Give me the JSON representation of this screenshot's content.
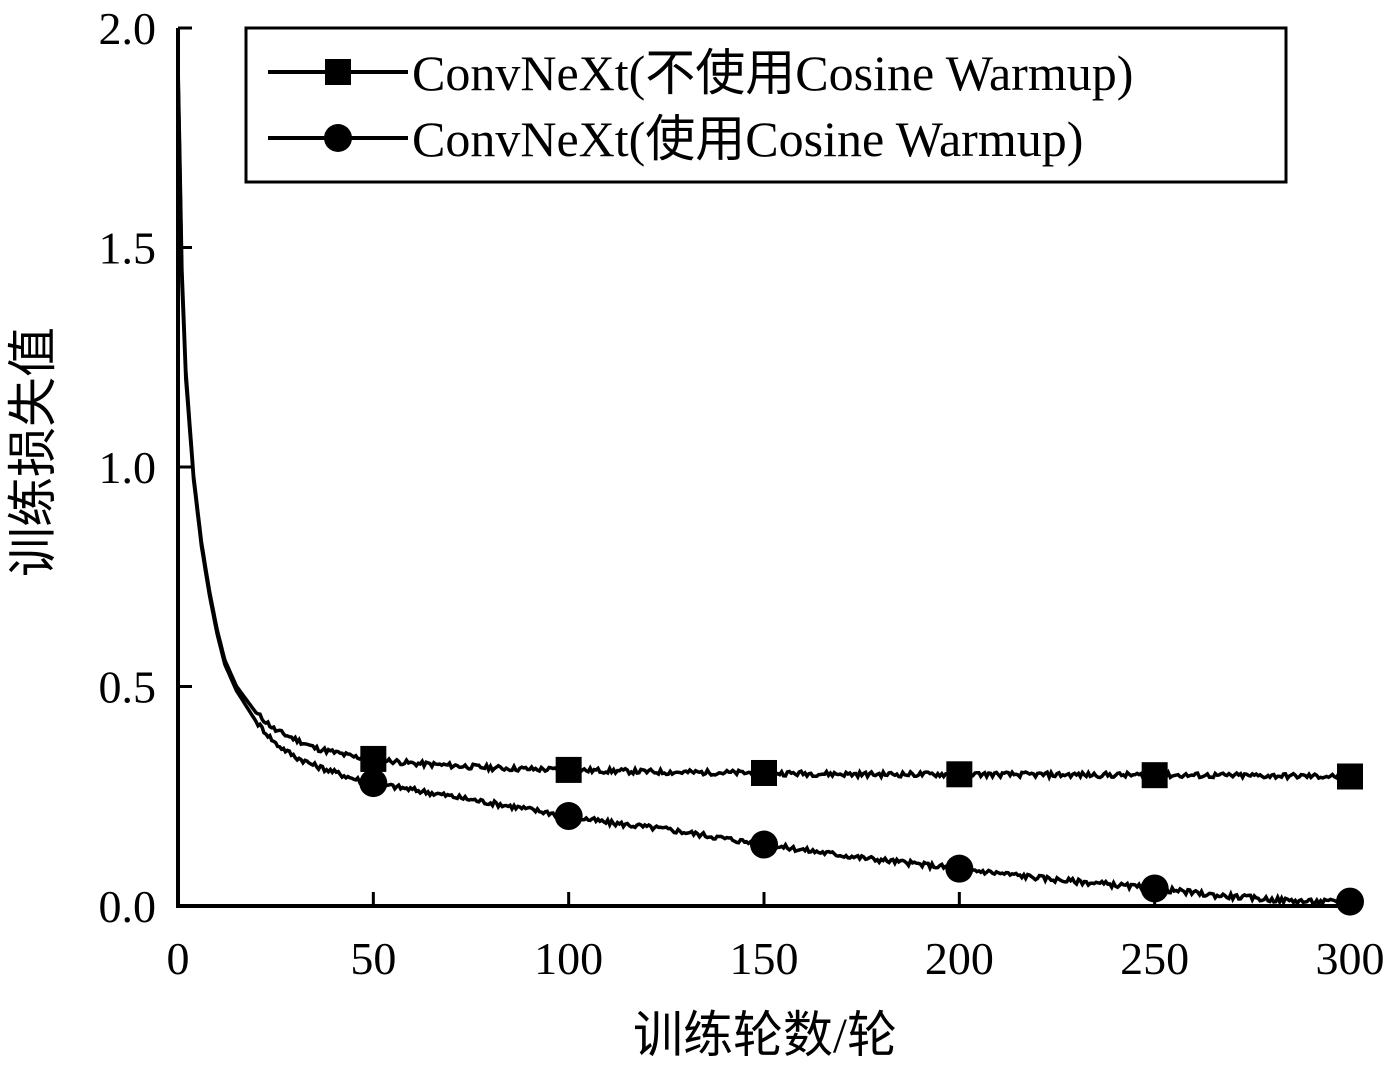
{
  "chart_data": {
    "type": "line",
    "title": "",
    "xlabel": "训练轮数/轮",
    "ylabel": "训练损失值",
    "xlim": [
      0,
      300
    ],
    "ylim": [
      0,
      2.0
    ],
    "x_ticks": [
      "0",
      "50",
      "100",
      "150",
      "200",
      "250",
      "300"
    ],
    "y_ticks": [
      "0.0",
      "0.5",
      "1.0",
      "1.5",
      "2.0"
    ],
    "grid": false,
    "legend_position": "top-right",
    "series": [
      {
        "name": "ConvNeXt(不使用Cosine Warmup)",
        "marker": "square",
        "color": "#000000",
        "x": [
          0,
          1,
          2,
          4,
          6,
          8,
          10,
          12,
          15,
          20,
          25,
          30,
          35,
          40,
          45,
          50,
          60,
          70,
          80,
          90,
          100,
          125,
          150,
          175,
          200,
          225,
          250,
          275,
          300
        ],
        "y": [
          1.92,
          1.45,
          1.22,
          0.98,
          0.83,
          0.72,
          0.63,
          0.56,
          0.5,
          0.44,
          0.4,
          0.38,
          0.36,
          0.35,
          0.34,
          0.335,
          0.325,
          0.32,
          0.315,
          0.312,
          0.31,
          0.305,
          0.303,
          0.3,
          0.3,
          0.299,
          0.298,
          0.297,
          0.295
        ],
        "marker_x": [
          50,
          100,
          150,
          200,
          250,
          300
        ],
        "marker_y": [
          0.335,
          0.31,
          0.303,
          0.3,
          0.298,
          0.295
        ]
      },
      {
        "name": "ConvNeXt(使用Cosine Warmup)",
        "marker": "circle",
        "color": "#000000",
        "x": [
          0,
          1,
          2,
          4,
          6,
          8,
          10,
          12,
          15,
          20,
          25,
          30,
          35,
          40,
          45,
          50,
          60,
          70,
          80,
          90,
          100,
          110,
          125,
          150,
          175,
          200,
          225,
          250,
          265,
          280,
          290,
          300
        ],
        "y": [
          1.9,
          1.42,
          1.2,
          0.97,
          0.82,
          0.71,
          0.62,
          0.55,
          0.49,
          0.42,
          0.37,
          0.34,
          0.32,
          0.305,
          0.29,
          0.28,
          0.265,
          0.25,
          0.235,
          0.22,
          0.205,
          0.19,
          0.175,
          0.14,
          0.11,
          0.085,
          0.06,
          0.04,
          0.025,
          0.015,
          0.01,
          0.01
        ],
        "marker_x": [
          50,
          100,
          150,
          200,
          250,
          300
        ],
        "marker_y": [
          0.28,
          0.205,
          0.14,
          0.085,
          0.04,
          0.01
        ]
      }
    ]
  }
}
